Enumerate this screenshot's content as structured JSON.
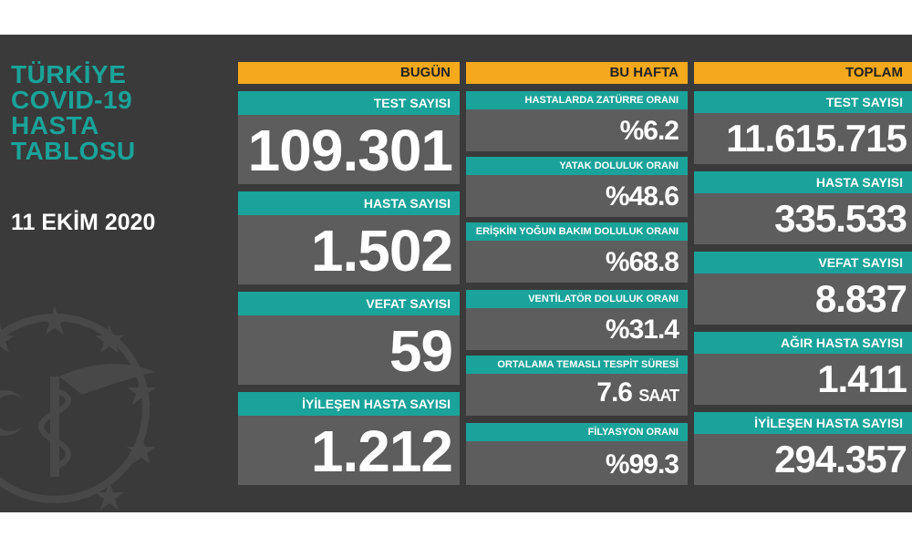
{
  "title": {
    "line1": "TÜRKİYE",
    "line2": "COVID-19",
    "line3": "HASTA",
    "line4": "TABLOSU"
  },
  "date": "11 EKİM 2020",
  "columns": {
    "today": "BUGÜN",
    "week": "BU HAFTA",
    "total": "TOPLAM"
  },
  "today": [
    {
      "label": "TEST SAYISI",
      "value": "109.301"
    },
    {
      "label": "HASTA SAYISI",
      "value": "1.502"
    },
    {
      "label": "VEFAT SAYISI",
      "value": "59"
    },
    {
      "label": "İYİLEŞEN HASTA SAYISI",
      "value": "1.212"
    }
  ],
  "week": [
    {
      "label": "HASTALARDA ZATÜRRE ORANI",
      "value": "%6.2"
    },
    {
      "label": "YATAK DOLULUK ORANI",
      "value": "%48.6"
    },
    {
      "label": "ERİŞKİN YOĞUN BAKIM DOLULUK ORANI",
      "value": "%68.8"
    },
    {
      "label": "VENTİLATÖR DOLULUK ORANI",
      "value": "%31.4"
    },
    {
      "label": "ORTALAMA TEMASLI TESPİT SÜRESİ",
      "value": "7.6",
      "unit": "SAAT"
    },
    {
      "label": "FİLYASYON ORANI",
      "value": "%99.3"
    }
  ],
  "total": [
    {
      "label": "TEST SAYISI",
      "value": "11.615.715"
    },
    {
      "label": "HASTA SAYISI",
      "value": "335.533"
    },
    {
      "label": "VEFAT SAYISI",
      "value": "8.837"
    },
    {
      "label": "AĞIR HASTA SAYISI",
      "value": "1.411"
    },
    {
      "label": "İYİLEŞEN HASTA SAYISI",
      "value": "294.357"
    }
  ],
  "colors": {
    "background": "#3a3a3a",
    "header": "#f4a81c",
    "label": "#1aa39a",
    "card": "#5d5d5d"
  },
  "icons": {
    "emblem": "ministry-of-health-emblem-icon"
  }
}
